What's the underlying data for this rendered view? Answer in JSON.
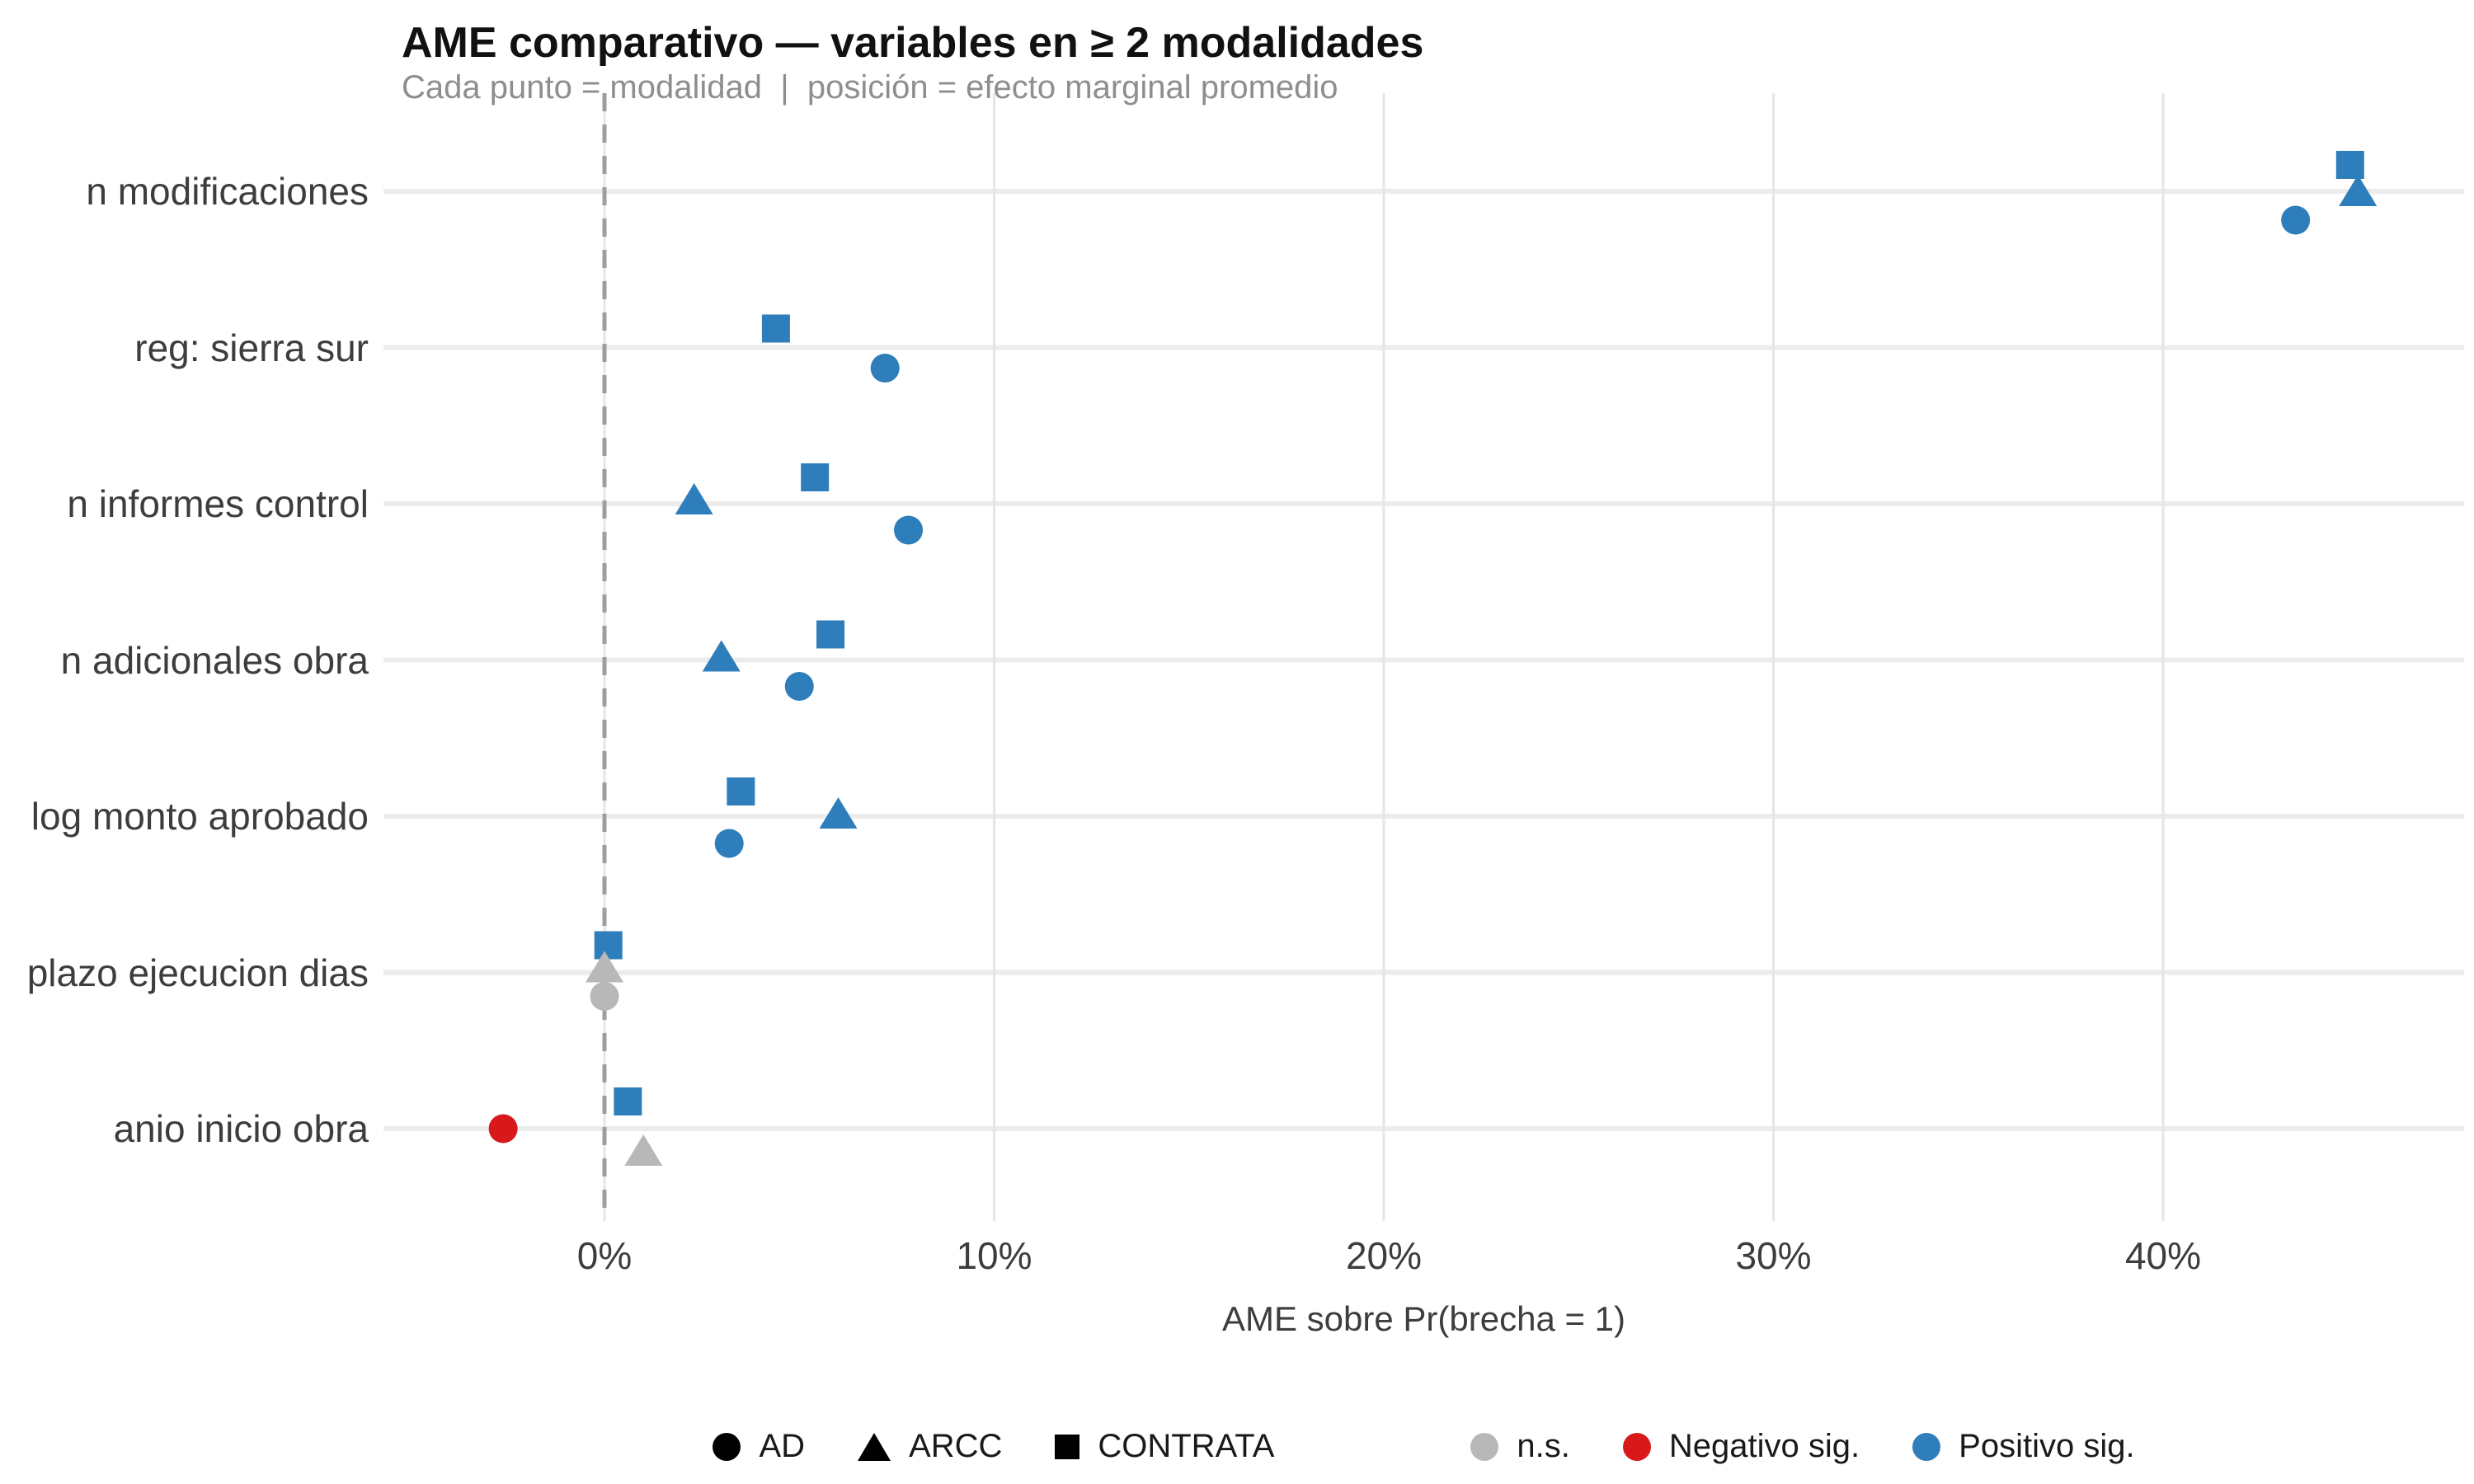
{
  "colors": {
    "pos": "#2E7EBB",
    "neg": "#D7191C",
    "ns": "#B8B8B8",
    "grid_h": "#ECECEC",
    "grid_v": "#E5E5E5",
    "zero_line": "#9E9E9E",
    "title_text": "#111111",
    "subtitle_text": "#8E8E8E",
    "axis_text": "#3D3D3D"
  },
  "chart_data": {
    "type": "scatter",
    "title": "AME comparativo — variables en ≥ 2 modalidades",
    "subtitle": "Cada punto = modalidad  |  posición = efecto marginal promedio",
    "xlabel": "AME sobre Pr(brecha = 1)",
    "xlim": [
      -5.7,
      47.7
    ],
    "grid": "on",
    "x_ticks": [
      {
        "label": "0%",
        "value": 0
      },
      {
        "label": "10%",
        "value": 10
      },
      {
        "label": "20%",
        "value": 20
      },
      {
        "label": "30%",
        "value": 30
      },
      {
        "label": "40%",
        "value": 40
      }
    ],
    "categories": [
      "n modificaciones",
      "reg: sierra sur",
      "n informes control",
      "n adicionales obra",
      "log monto aprobado",
      "plazo ejecucion dias",
      "anio inicio obra"
    ],
    "zero_reference_line_pct": 0,
    "points": [
      {
        "variable": "n modificaciones",
        "row": 0,
        "modality": "CONTRATA",
        "shape": "square",
        "sig": "pos",
        "value_pct": 44.8,
        "dy": -32
      },
      {
        "variable": "n modificaciones",
        "row": 0,
        "modality": "ARCC",
        "shape": "triangle",
        "sig": "pos",
        "value_pct": 45.0,
        "dy": 1
      },
      {
        "variable": "n modificaciones",
        "row": 0,
        "modality": "AD",
        "shape": "circle",
        "sig": "pos",
        "value_pct": 43.4,
        "dy": 35
      },
      {
        "variable": "reg: sierra sur",
        "row": 1,
        "modality": "CONTRATA",
        "shape": "square",
        "sig": "pos",
        "value_pct": 4.4,
        "dy": -23
      },
      {
        "variable": "reg: sierra sur",
        "row": 1,
        "modality": "AD",
        "shape": "circle",
        "sig": "pos",
        "value_pct": 7.2,
        "dy": 25
      },
      {
        "variable": "n informes control",
        "row": 2,
        "modality": "CONTRATA",
        "shape": "square",
        "sig": "pos",
        "value_pct": 5.4,
        "dy": -32
      },
      {
        "variable": "n informes control",
        "row": 2,
        "modality": "ARCC",
        "shape": "triangle",
        "sig": "pos",
        "value_pct": 2.3,
        "dy": -4
      },
      {
        "variable": "n informes control",
        "row": 2,
        "modality": "AD",
        "shape": "circle",
        "sig": "pos",
        "value_pct": 7.8,
        "dy": 32
      },
      {
        "variable": "n adicionales obra",
        "row": 3,
        "modality": "CONTRATA",
        "shape": "square",
        "sig": "pos",
        "value_pct": 5.8,
        "dy": -31
      },
      {
        "variable": "n adicionales obra",
        "row": 3,
        "modality": "ARCC",
        "shape": "triangle",
        "sig": "pos",
        "value_pct": 3.0,
        "dy": -3
      },
      {
        "variable": "n adicionales obra",
        "row": 3,
        "modality": "AD",
        "shape": "circle",
        "sig": "pos",
        "value_pct": 5.0,
        "dy": 32
      },
      {
        "variable": "log monto aprobado",
        "row": 4,
        "modality": "CONTRATA",
        "shape": "square",
        "sig": "pos",
        "value_pct": 3.5,
        "dy": -30
      },
      {
        "variable": "log monto aprobado",
        "row": 4,
        "modality": "ARCC",
        "shape": "triangle",
        "sig": "pos",
        "value_pct": 6.0,
        "dy": -2
      },
      {
        "variable": "log monto aprobado",
        "row": 4,
        "modality": "AD",
        "shape": "circle",
        "sig": "pos",
        "value_pct": 3.2,
        "dy": 33
      },
      {
        "variable": "plazo ejecucion dias",
        "row": 5,
        "modality": "CONTRATA",
        "shape": "square",
        "sig": "pos",
        "value_pct": 0.1,
        "dy": -33
      },
      {
        "variable": "plazo ejecucion dias",
        "row": 5,
        "modality": "ARCC",
        "shape": "triangle",
        "sig": "ns",
        "value_pct": 0.0,
        "dy": -5
      },
      {
        "variable": "plazo ejecucion dias",
        "row": 5,
        "modality": "AD",
        "shape": "circle",
        "sig": "ns",
        "value_pct": 0.0,
        "dy": 29
      },
      {
        "variable": "anio inicio obra",
        "row": 6,
        "modality": "CONTRATA",
        "shape": "square",
        "sig": "pos",
        "value_pct": 0.6,
        "dy": -33
      },
      {
        "variable": "anio inicio obra",
        "row": 6,
        "modality": "ARCC",
        "shape": "triangle",
        "sig": "ns",
        "value_pct": 1.0,
        "dy": 28
      },
      {
        "variable": "anio inicio obra",
        "row": 6,
        "modality": "AD",
        "shape": "circle",
        "sig": "neg",
        "value_pct": -2.6,
        "dy": 0
      }
    ]
  },
  "legend": {
    "shape_items": [
      {
        "shape": "circle",
        "label": "AD"
      },
      {
        "shape": "triangle",
        "label": "ARCC"
      },
      {
        "shape": "square",
        "label": "CONTRATA"
      }
    ],
    "color_items": [
      {
        "color_key": "ns",
        "label": "n.s."
      },
      {
        "color_key": "neg",
        "label": "Negativo sig."
      },
      {
        "color_key": "pos",
        "label": "Positivo sig."
      }
    ]
  }
}
